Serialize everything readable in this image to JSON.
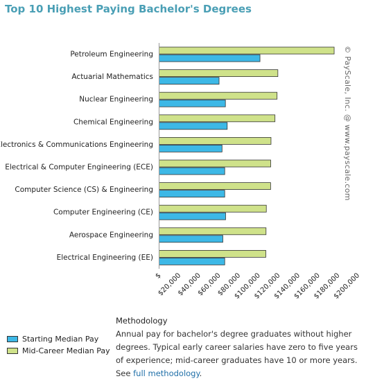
{
  "page": {
    "title": "Top 10 Highest Paying Bachelor's Degrees"
  },
  "chart_data": {
    "type": "bar",
    "orientation": "horizontal",
    "title": "Top 10 Highest Paying Bachelor's Degrees",
    "categories": [
      "Petroleum Engineering",
      "Actuarial Mathematics",
      "Nuclear Engineering",
      "Chemical Engineering",
      "Electronics & Communications Engineering",
      "Electrical & Computer Engineering (ECE)",
      "Computer Science (CS) & Engineering",
      "Computer Engineering (CE)",
      "Aerospace Engineering",
      "Electrical Engineering (EE)"
    ],
    "series": [
      {
        "name": "Mid-Career Median Pay",
        "color": "#cfe28a",
        "values": [
          176300,
          119600,
          118800,
          116700,
          112700,
          112400,
          112300,
          108000,
          107700,
          107500
        ]
      },
      {
        "name": "Starting Median Pay",
        "color": "#3db8e6",
        "values": [
          101600,
          60400,
          66800,
          68600,
          63400,
          66100,
          66100,
          67000,
          64200,
          66100
        ]
      }
    ],
    "x_ticks": [
      "$",
      "$20,000",
      "$40,000",
      "$60,000",
      "$80,000",
      "$100,000",
      "$120,000",
      "$140,000",
      "$160,000",
      "$180,000",
      "$200,000"
    ],
    "xlim": [
      0,
      200000
    ],
    "grid": false,
    "legend": "bottom-left"
  },
  "watermark": "© PayScale, Inc. @ www.payscale.com",
  "legend": {
    "items": [
      {
        "label": "Starting Median Pay",
        "color": "#3db8e6"
      },
      {
        "label": "Mid-Career Median Pay",
        "color": "#cfe28a"
      }
    ]
  },
  "methodology": {
    "title": "Methodology",
    "text": "Annual pay for bachelor's degree graduates without higher degrees. Typical early career salaries have zero to five years of experience; mid-career graduates have 10 or more years. See ",
    "link": "full methodology",
    "end": "."
  }
}
